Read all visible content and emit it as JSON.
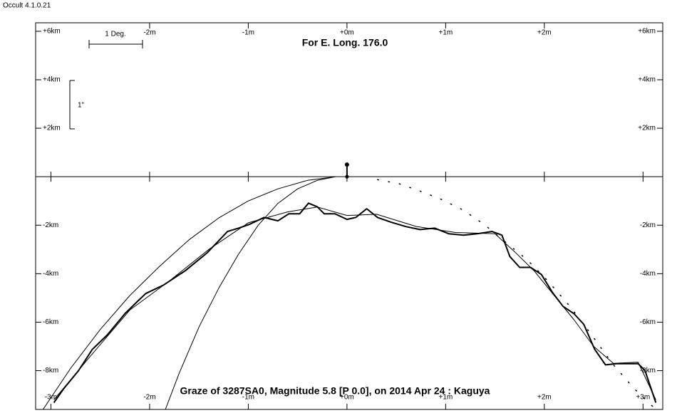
{
  "app_label": "Occult 4.1.0.21",
  "chart_data": {
    "type": "line",
    "title": "For E. Long. 176.0",
    "caption": "Graze of  3287SA0,  Magnitude 5.8 [P 0.0],  on 2014 Apr 24  :  Kaguya",
    "annotations": [
      "1 Deg.",
      "1\""
    ],
    "xlim": [
      -3.155,
      3.2
    ],
    "ylim": [
      -9.6,
      6.35
    ],
    "xticks": [
      {
        "value": -3,
        "label": "-3m"
      },
      {
        "value": -2,
        "label": "-2m"
      },
      {
        "value": -1,
        "label": "-1m"
      },
      {
        "value": 0,
        "label": "+0m"
      },
      {
        "value": 1,
        "label": "+1m"
      },
      {
        "value": 2,
        "label": "+2m"
      },
      {
        "value": 3,
        "label": "+3m"
      }
    ],
    "yticks": [
      {
        "value": 6,
        "label": "+6km"
      },
      {
        "value": 4,
        "label": "+4km"
      },
      {
        "value": 2,
        "label": "+2km"
      },
      {
        "value": -2,
        "label": "-2km"
      },
      {
        "value": -4,
        "label": "-4km"
      },
      {
        "value": -6,
        "label": "-6km"
      },
      {
        "value": -8,
        "label": "-8km"
      }
    ],
    "series": [
      {
        "color": "#000000",
        "width": 2,
        "style": "solid",
        "x": [
          -2.97,
          -2.87,
          -2.72,
          -2.58,
          -2.43,
          -2.25,
          -2.14,
          -2.04,
          -1.86,
          -1.64,
          -1.42,
          -1.21,
          -1.1,
          -0.99,
          -0.84,
          -0.7,
          -0.59,
          -0.48,
          -0.39,
          -0.3,
          -0.23,
          -0.12,
          0,
          0.09,
          0.2,
          0.31,
          0.45,
          0.6,
          0.74,
          0.89,
          1.03,
          1.18,
          1.32,
          1.47,
          1.57,
          1.65,
          1.75,
          1.86,
          1.97,
          2.08,
          2.19,
          2.3,
          2.4,
          2.51,
          2.62,
          2.73,
          2.84,
          2.95,
          3.02,
          3.13
        ],
        "values": [
          -9.32,
          -8.74,
          -8.0,
          -7.12,
          -6.53,
          -5.65,
          -5.21,
          -4.82,
          -4.47,
          -3.88,
          -3.15,
          -2.26,
          -2.12,
          -1.97,
          -1.68,
          -1.82,
          -1.53,
          -1.53,
          -1.09,
          -1.24,
          -1.53,
          -1.53,
          -1.76,
          -1.68,
          -1.32,
          -1.68,
          -1.88,
          -2.06,
          -2.18,
          -2.12,
          -2.35,
          -2.41,
          -2.35,
          -2.26,
          -2.41,
          -3.29,
          -3.74,
          -3.74,
          -4.03,
          -4.76,
          -5.35,
          -5.65,
          -6.09,
          -7.12,
          -7.76,
          -7.71,
          -7.71,
          -7.71,
          -8.0,
          -9.32
        ]
      },
      {
        "color": "#000000",
        "width": 1,
        "style": "solid",
        "x": [
          -2.97,
          -2.6,
          -2.2,
          -1.8,
          -1.4,
          -1.0,
          -0.6,
          -0.3,
          0,
          0.3,
          0.7,
          1.1,
          1.5,
          1.7,
          1.9,
          2.1,
          2.3,
          2.5,
          2.7,
          2.95,
          3.13
        ],
        "values": [
          -9.2,
          -7.4,
          -5.5,
          -4.3,
          -3.0,
          -1.9,
          -1.45,
          -1.25,
          -1.6,
          -1.55,
          -2.05,
          -2.3,
          -2.35,
          -3.1,
          -3.9,
          -4.9,
          -5.9,
          -7.0,
          -7.7,
          -7.65,
          -9.2
        ]
      },
      {
        "color": "#000000",
        "width": 1.5,
        "style": "dotted",
        "x": [
          0.31,
          0.53,
          0.74,
          0.96,
          1.18,
          1.39,
          1.61,
          1.83,
          2.04,
          2.26,
          2.48,
          2.69,
          2.91,
          3.13
        ],
        "values": [
          -0.12,
          -0.29,
          -0.59,
          -0.94,
          -1.38,
          -1.97,
          -2.71,
          -3.44,
          -4.32,
          -5.35,
          -6.53,
          -7.71,
          -8.74,
          -9.6
        ]
      },
      {
        "color": "#000000",
        "width": 1,
        "style": "solid",
        "x": [
          -3.08,
          -2.8,
          -2.5,
          -2.2,
          -1.9,
          -1.6,
          -1.3,
          -1.0,
          -0.7,
          -0.4,
          -0.12
        ],
        "values": [
          -9.6,
          -7.9,
          -6.3,
          -4.9,
          -3.7,
          -2.6,
          -1.7,
          -1.0,
          -0.5,
          -0.15,
          0
        ]
      },
      {
        "color": "#000000",
        "width": 1,
        "style": "solid",
        "x": [
          -1.84,
          -1.7,
          -1.5,
          -1.3,
          -1.1,
          -0.9,
          -0.7,
          -0.5,
          -0.3,
          -0.12
        ],
        "values": [
          -9.6,
          -8.1,
          -6.2,
          -4.6,
          -3.2,
          -2.0,
          -1.1,
          -0.5,
          -0.15,
          0
        ]
      },
      {
        "color": "#000000",
        "width": 2,
        "style": "solid",
        "marker": true,
        "x": [
          0,
          0
        ],
        "values": [
          0.5,
          0
        ]
      }
    ]
  }
}
